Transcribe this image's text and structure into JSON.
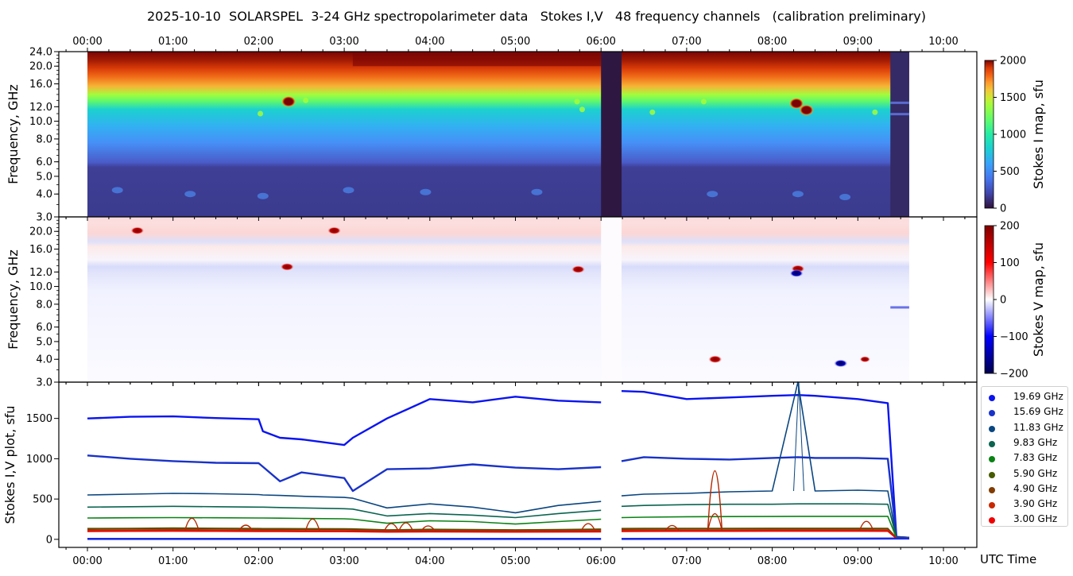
{
  "figure": {
    "title": "2025-10-10  SOLARSPEL  3-24 GHz spectropolarimeter data   Stokes I,V   48 frequency channels   (calibration preliminary)",
    "x_axis_label": "UTC Time"
  },
  "chart_data": [
    {
      "type": "heatmap",
      "name": "Stokes I map",
      "xlabel": "",
      "ylabel": "Frequency, GHz",
      "x_ticks": [
        "00:00",
        "01:00",
        "02:00",
        "03:00",
        "04:00",
        "05:00",
        "06:00",
        "07:00",
        "08:00",
        "09:00",
        "10:00"
      ],
      "x_range_hours": [
        -0.33,
        10.33
      ],
      "y_ticks": [
        "3.0",
        "4.0",
        "5.0",
        "6.0",
        "8.0",
        "10.0",
        "12.0",
        "16.0",
        "20.0",
        "24.0"
      ],
      "y_scale": "log",
      "y_range_ghz": [
        3.0,
        24.0
      ],
      "data_extent_hours": [
        0.0,
        9.6
      ],
      "colorbar": {
        "label": "Stokes I map, sfu",
        "ticks": [
          "0",
          "500",
          "1000",
          "1500",
          "2000"
        ],
        "range": [
          0,
          2000
        ],
        "colormap": "turbo"
      },
      "gaps_hours": [
        [
          6.0,
          6.24
        ],
        [
          9.38,
          9.6
        ]
      ],
      "description": "Flux rises with frequency: ~200-400 sfu below 6 GHz, ~600-900 sfu at 8-12 GHz, ~1000-1300 at 14-16 GHz, >1800 sfu above 20 GHz.",
      "bursts": [
        {
          "time": "02:21",
          "freq_ghz": 12.8,
          "peak_sfu": 2000
        },
        {
          "time": "08:17",
          "freq_ghz": 12.5,
          "peak_sfu": 2000
        },
        {
          "time": "08:24",
          "freq_ghz": 11.5,
          "peak_sfu": 2000
        }
      ]
    },
    {
      "type": "heatmap",
      "name": "Stokes V map",
      "xlabel": "",
      "ylabel": "Frequency, GHz",
      "x_ticks": [
        "00:00",
        "01:00",
        "02:00",
        "03:00",
        "04:00",
        "05:00",
        "06:00",
        "07:00",
        "08:00",
        "09:00",
        "10:00"
      ],
      "y_ticks": [
        "3.0",
        "4.0",
        "5.0",
        "6.0",
        "8.0",
        "10.0",
        "12.0",
        "16.0",
        "20.0"
      ],
      "y_scale": "log",
      "y_range_ghz": [
        3.0,
        24.0
      ],
      "colorbar": {
        "label": "Stokes V map, sfu",
        "ticks": [
          "−200",
          "−100",
          "0",
          "100",
          "200"
        ],
        "range": [
          -200,
          200
        ],
        "colormap": "seismic"
      },
      "features": [
        {
          "time": "00:35",
          "freq_ghz": 20.2,
          "sign": "+",
          "strength": "strong"
        },
        {
          "time": "02:20",
          "freq_ghz": 12.8,
          "sign": "+",
          "strength": "strong"
        },
        {
          "time": "02:53",
          "freq_ghz": 20.2,
          "sign": "+",
          "strength": "strong"
        },
        {
          "time": "05:44",
          "freq_ghz": 12.4,
          "sign": "+",
          "strength": "strong"
        },
        {
          "time": "07:20",
          "freq_ghz": 4.0,
          "sign": "+",
          "strength": "strong"
        },
        {
          "time": "08:18",
          "freq_ghz": 12.5,
          "sign": "+",
          "strength": "strong"
        },
        {
          "time": "08:17",
          "freq_ghz": 11.8,
          "sign": "-",
          "strength": "strong"
        },
        {
          "time": "08:48",
          "freq_ghz": 3.8,
          "sign": "-",
          "strength": "strong"
        },
        {
          "time": "09:05",
          "freq_ghz": 4.0,
          "sign": "+",
          "strength": "medium"
        }
      ]
    },
    {
      "type": "line",
      "name": "Stokes I,V plot",
      "xlabel": "UTC Time",
      "ylabel": "Stokes I,V plot, sfu",
      "x_ticks": [
        "00:00",
        "01:00",
        "02:00",
        "03:00",
        "04:00",
        "05:00",
        "06:00",
        "07:00",
        "08:00",
        "09:00",
        "10:00"
      ],
      "y_ticks": [
        "0",
        "500",
        "1000",
        "1500"
      ],
      "ylim": [
        -100,
        1950
      ],
      "x": [
        0.0,
        0.5,
        1.0,
        1.5,
        2.0,
        2.05,
        2.25,
        2.5,
        3.0,
        3.1,
        3.5,
        4.0,
        4.5,
        5.0,
        5.5,
        6.0,
        6.24,
        6.5,
        7.0,
        7.5,
        8.0,
        8.3,
        8.5,
        9.0,
        9.35,
        9.45,
        9.6
      ],
      "series": [
        {
          "name": "19.69 GHz",
          "color": "#0a14f0",
          "values": [
            1500,
            1520,
            1525,
            1505,
            1490,
            1340,
            1260,
            1240,
            1170,
            1260,
            1500,
            1740,
            1700,
            1770,
            1720,
            1700,
            1840,
            1830,
            1740,
            1760,
            1780,
            1790,
            1780,
            1740,
            1690,
            30,
            20
          ]
        },
        {
          "name": "15.69 GHz",
          "color": "#1932c8",
          "values": [
            1040,
            1000,
            970,
            950,
            945,
            900,
            720,
            830,
            760,
            600,
            870,
            880,
            930,
            890,
            870,
            895,
            970,
            1020,
            1000,
            990,
            1010,
            1020,
            1010,
            1010,
            1000,
            30,
            20
          ]
        },
        {
          "name": "11.83 GHz",
          "color": "#0a4680",
          "values": [
            550,
            560,
            570,
            565,
            555,
            550,
            545,
            535,
            520,
            510,
            390,
            440,
            400,
            330,
            420,
            470,
            540,
            560,
            570,
            590,
            600,
            1950,
            600,
            610,
            600,
            20,
            20
          ]
        },
        {
          "name": "9.83 GHz",
          "color": "#0a6450",
          "values": [
            400,
            405,
            410,
            405,
            400,
            400,
            395,
            390,
            380,
            375,
            290,
            320,
            300,
            270,
            320,
            360,
            410,
            420,
            430,
            435,
            435,
            440,
            440,
            440,
            435,
            20,
            20
          ]
        },
        {
          "name": "7.83 GHz",
          "color": "#0a8214",
          "values": [
            265,
            268,
            270,
            268,
            265,
            265,
            263,
            260,
            255,
            250,
            200,
            230,
            220,
            190,
            220,
            250,
            270,
            275,
            280,
            282,
            283,
            285,
            285,
            285,
            285,
            20,
            20
          ]
        },
        {
          "name": "5.90 GHz",
          "color": "#465a00",
          "values": [
            135,
            137,
            140,
            138,
            135,
            134,
            134,
            133,
            132,
            130,
            118,
            125,
            122,
            118,
            122,
            128,
            135,
            136,
            137,
            137,
            138,
            138,
            138,
            138,
            137,
            20,
            20
          ]
        },
        {
          "name": "4.90 GHz",
          "color": "#823c00",
          "values": [
            125,
            127,
            128,
            127,
            125,
            124,
            124,
            123,
            122,
            120,
            110,
            115,
            113,
            110,
            113,
            118,
            125,
            126,
            127,
            127,
            128,
            128,
            128,
            128,
            127,
            15,
            15
          ]
        },
        {
          "name": "3.90 GHz",
          "color": "#c82800",
          "values": [
            110,
            112,
            114,
            112,
            110,
            109,
            109,
            108,
            108,
            106,
            100,
            103,
            101,
            99,
            101,
            104,
            110,
            111,
            112,
            112,
            113,
            113,
            113,
            113,
            112,
            15,
            15
          ]
        },
        {
          "name": "3.00 GHz",
          "color": "#f00000",
          "values": [
            98,
            100,
            101,
            100,
            98,
            97,
            97,
            96,
            96,
            95,
            90,
            92,
            91,
            90,
            91,
            93,
            98,
            99,
            100,
            100,
            101,
            101,
            101,
            101,
            100,
            10,
            10
          ]
        }
      ],
      "v_bumps": [
        {
          "time_h": 1.22,
          "value": 270
        },
        {
          "time_h": 1.85,
          "value": 180
        },
        {
          "time_h": 2.63,
          "value": 260
        },
        {
          "time_h": 3.55,
          "value": 200
        },
        {
          "time_h": 3.72,
          "value": 210
        },
        {
          "time_h": 3.98,
          "value": 170
        },
        {
          "time_h": 5.85,
          "value": 200
        },
        {
          "time_h": 6.83,
          "value": 175
        },
        {
          "time_h": 7.33,
          "value": 890
        },
        {
          "time_h": 7.33,
          "value": 330
        },
        {
          "time_h": 9.1,
          "value": 230
        }
      ],
      "legend": {
        "position": "right",
        "entries": [
          "19.69 GHz",
          "15.69 GHz",
          "11.83 GHz",
          "9.83 GHz",
          "7.83 GHz",
          "5.90 GHz",
          "4.90 GHz",
          "3.90 GHz",
          "3.00 GHz"
        ],
        "colors": [
          "#0a14f0",
          "#1932c8",
          "#0a4680",
          "#0a6450",
          "#0a8214",
          "#465a00",
          "#823c00",
          "#c82800",
          "#f00000"
        ]
      }
    }
  ]
}
